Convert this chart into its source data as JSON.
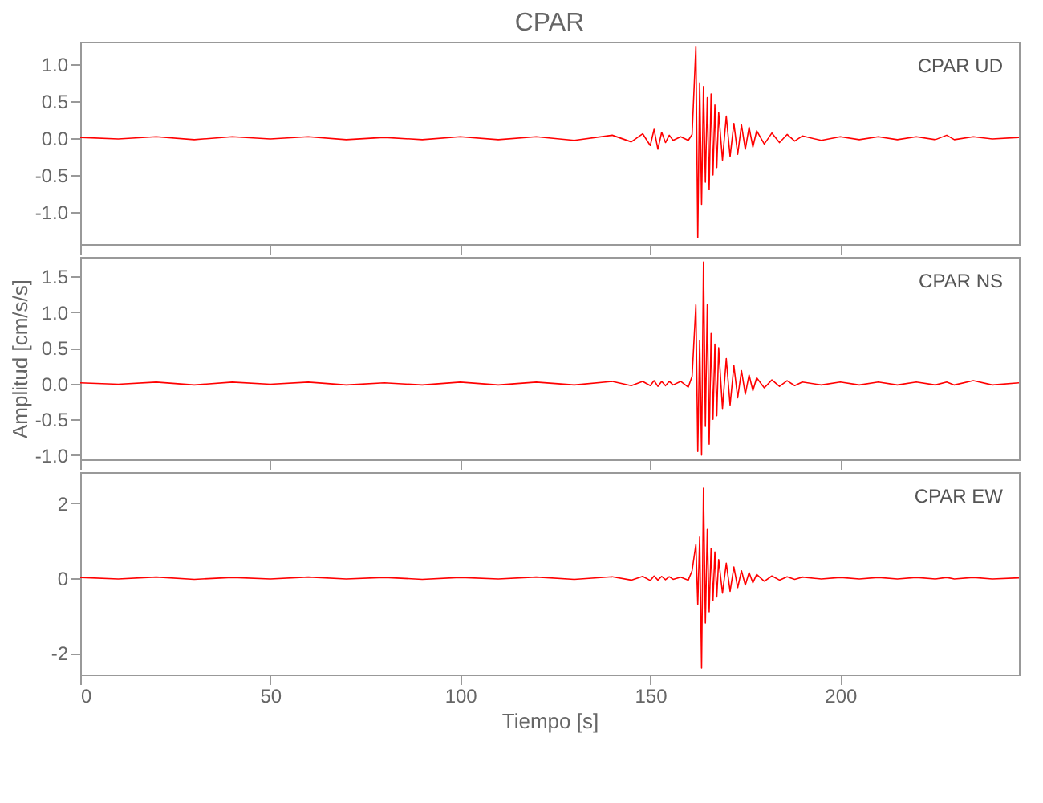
{
  "chart_data": [
    {
      "type": "line",
      "title": "CPAR",
      "annotations": [
        "CPAR   UD"
      ],
      "tick_labels": "y",
      "grid": false,
      "x": [
        0,
        10,
        20,
        30,
        40,
        50,
        60,
        70,
        80,
        90,
        100,
        110,
        120,
        130,
        140,
        145,
        148,
        150,
        151,
        152,
        153,
        154,
        155,
        156,
        158,
        160,
        161,
        162,
        162.5,
        163,
        163.5,
        164,
        164.5,
        165,
        165.5,
        166,
        166.5,
        167,
        167.5,
        168,
        169,
        170,
        171,
        172,
        173,
        174,
        175,
        176,
        177,
        178,
        180,
        182,
        184,
        186,
        188,
        190,
        195,
        200,
        205,
        210,
        215,
        220,
        225,
        228,
        230,
        235,
        240,
        247
      ],
      "series": [
        {
          "color": "#ff0000",
          "values": [
            0.01,
            -0.01,
            0.02,
            -0.02,
            0.02,
            -0.01,
            0.02,
            -0.02,
            0.01,
            -0.02,
            0.02,
            -0.02,
            0.02,
            -0.03,
            0.04,
            -0.05,
            0.06,
            -0.1,
            0.12,
            -0.15,
            0.08,
            -0.06,
            0.04,
            -0.03,
            0.02,
            -0.03,
            0.05,
            1.25,
            -1.35,
            0.75,
            -0.9,
            0.7,
            -0.6,
            0.55,
            -0.7,
            0.6,
            -0.5,
            0.45,
            -0.4,
            0.35,
            -0.3,
            0.3,
            -0.25,
            0.2,
            -0.22,
            0.18,
            -0.15,
            0.15,
            -0.12,
            0.1,
            -0.08,
            0.07,
            -0.06,
            0.05,
            -0.04,
            0.03,
            -0.03,
            0.02,
            -0.02,
            0.02,
            -0.02,
            0.02,
            -0.02,
            0.04,
            -0.02,
            0.02,
            -0.01,
            0.01
          ]
        }
      ],
      "xlim": [
        0,
        247
      ],
      "xticks": [
        0,
        50,
        100,
        150,
        200
      ],
      "ylim": [
        -1.44,
        1.31
      ],
      "yticks": [
        {
          "value": -1.0,
          "label": "-1.0"
        },
        {
          "value": -0.5,
          "label": "-0.5"
        },
        {
          "value": 0,
          "label": "0.0"
        },
        {
          "value": 0.5,
          "label": "0.5"
        },
        {
          "value": 1.0,
          "label": "1.0"
        }
      ]
    },
    {
      "type": "line",
      "ylabel": "Amplitud [cm/s/s]",
      "annotations": [
        "CPAR   NS"
      ],
      "tick_labels": "y",
      "grid": false,
      "x": [
        0,
        10,
        20,
        30,
        40,
        50,
        60,
        70,
        80,
        90,
        100,
        110,
        120,
        130,
        140,
        145,
        148,
        150,
        151,
        152,
        153,
        154,
        155,
        156,
        158,
        160,
        161,
        162,
        162.5,
        163,
        163.5,
        164,
        164.5,
        165,
        165.5,
        166,
        166.5,
        167,
        167.5,
        168,
        169,
        170,
        171,
        172,
        173,
        174,
        175,
        176,
        177,
        178,
        180,
        182,
        184,
        186,
        188,
        190,
        195,
        200,
        205,
        210,
        215,
        220,
        225,
        228,
        230,
        235,
        240,
        247
      ],
      "series": [
        {
          "color": "#ff0000",
          "values": [
            0.01,
            -0.01,
            0.02,
            -0.02,
            0.02,
            -0.01,
            0.02,
            -0.02,
            0.01,
            -0.02,
            0.02,
            -0.02,
            0.02,
            -0.02,
            0.03,
            -0.03,
            0.03,
            -0.03,
            0.04,
            -0.04,
            0.03,
            -0.03,
            0.03,
            -0.02,
            0.03,
            -0.05,
            0.1,
            1.1,
            -0.95,
            0.6,
            -1.0,
            1.7,
            -0.6,
            1.1,
            -0.85,
            0.7,
            -0.5,
            0.55,
            -0.45,
            0.5,
            -0.35,
            0.35,
            -0.3,
            0.25,
            -0.2,
            0.18,
            -0.15,
            0.12,
            -0.1,
            0.08,
            -0.06,
            0.05,
            -0.04,
            0.04,
            -0.03,
            0.02,
            -0.02,
            0.02,
            -0.02,
            0.02,
            -0.02,
            0.02,
            -0.02,
            0.02,
            -0.02,
            0.04,
            -0.02,
            0.01
          ]
        }
      ],
      "xlim": [
        0,
        247
      ],
      "xticks": [
        0,
        50,
        100,
        150,
        200
      ],
      "ylim": [
        -1.06,
        1.77
      ],
      "yticks": [
        {
          "value": -1.0,
          "label": "-1.0"
        },
        {
          "value": -0.5,
          "label": "-0.5"
        },
        {
          "value": 0,
          "label": "0.0"
        },
        {
          "value": 0.5,
          "label": "0.5"
        },
        {
          "value": 1.0,
          "label": "1.0"
        },
        {
          "value": 1.5,
          "label": "1.5"
        }
      ]
    },
    {
      "type": "line",
      "xlabel": "Tiempo [s]",
      "annotations": [
        "CPAR   EW"
      ],
      "grid": false,
      "x": [
        0,
        10,
        20,
        30,
        40,
        50,
        60,
        70,
        80,
        90,
        100,
        110,
        120,
        130,
        140,
        145,
        148,
        150,
        151,
        152,
        153,
        154,
        155,
        156,
        158,
        160,
        161,
        162,
        162.5,
        163,
        163.5,
        164,
        164.5,
        165,
        165.5,
        166,
        166.5,
        167,
        167.5,
        168,
        169,
        170,
        171,
        172,
        173,
        174,
        175,
        176,
        177,
        178,
        180,
        182,
        184,
        186,
        188,
        190,
        195,
        200,
        205,
        210,
        215,
        220,
        225,
        228,
        230,
        235,
        240,
        247
      ],
      "series": [
        {
          "color": "#ff0000",
          "values": [
            0.02,
            -0.02,
            0.03,
            -0.03,
            0.02,
            -0.02,
            0.03,
            -0.02,
            0.02,
            -0.03,
            0.02,
            -0.02,
            0.03,
            -0.03,
            0.04,
            -0.05,
            0.05,
            -0.06,
            0.06,
            -0.05,
            0.05,
            -0.04,
            0.04,
            -0.03,
            0.03,
            -0.05,
            0.2,
            0.9,
            -0.7,
            1.1,
            -2.4,
            2.4,
            -1.2,
            1.3,
            -0.9,
            0.8,
            -0.6,
            0.7,
            -0.5,
            0.5,
            -0.4,
            0.4,
            -0.35,
            0.3,
            -0.25,
            0.2,
            -0.18,
            0.15,
            -0.12,
            0.1,
            -0.08,
            0.06,
            -0.05,
            0.04,
            -0.03,
            0.03,
            -0.02,
            0.02,
            -0.02,
            0.02,
            -0.02,
            0.02,
            -0.02,
            0.02,
            -0.02,
            0.02,
            -0.02,
            0.01
          ]
        }
      ],
      "xlim": [
        0,
        247
      ],
      "xticks": [
        0,
        50,
        100,
        150,
        200
      ],
      "ylim": [
        -2.57,
        2.83
      ],
      "yticks": [
        -2,
        0,
        2
      ]
    }
  ]
}
